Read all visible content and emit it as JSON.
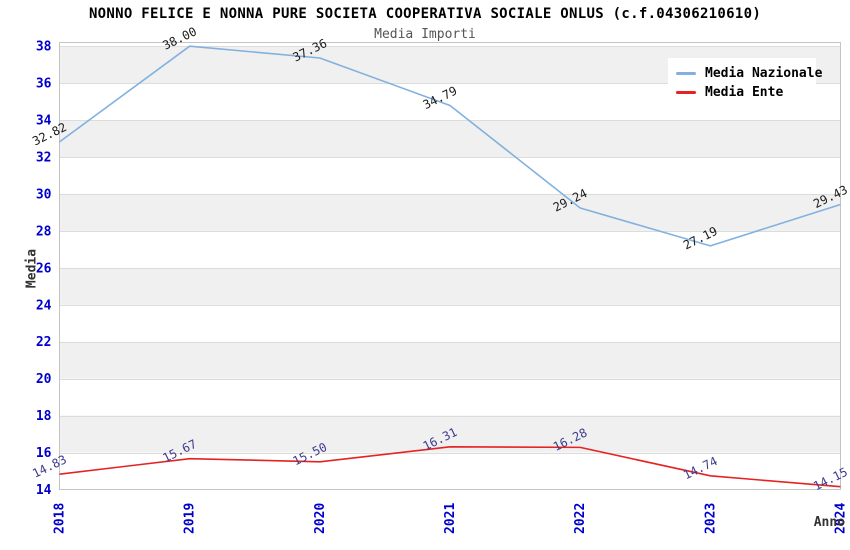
{
  "chart_data": {
    "type": "line",
    "title": "NONNO FELICE E NONNA PURE SOCIETA COOPERATIVA SOCIALE ONLUS (c.f.04306210610)",
    "subtitle": "Media Importi",
    "xlabel": "Anno",
    "ylabel": "Media",
    "categories": [
      "2018",
      "2019",
      "2020",
      "2021",
      "2022",
      "2023",
      "2024"
    ],
    "series": [
      {
        "name": "Media Nazionale",
        "color": "#82b1e0",
        "label_color": "#1a1a1a",
        "values": [
          32.82,
          38.0,
          37.36,
          34.79,
          29.24,
          27.19,
          29.43
        ]
      },
      {
        "name": "Media Ente",
        "color": "#e62222",
        "label_color": "#3b3b8f",
        "values": [
          14.83,
          15.67,
          15.5,
          16.31,
          16.28,
          14.74,
          14.15
        ]
      }
    ],
    "ylim": [
      14,
      38.2
    ],
    "y_ticks": [
      14,
      16,
      18,
      20,
      22,
      24,
      26,
      28,
      30,
      32,
      34,
      36,
      38
    ],
    "grid": "horizontal-bands",
    "legend_position": "top-right",
    "colors": {
      "band": "#f0f0f0",
      "gridline": "#dcdcdc",
      "plot_border": "#c4c4c4",
      "tick_label": "#0000cc"
    }
  }
}
